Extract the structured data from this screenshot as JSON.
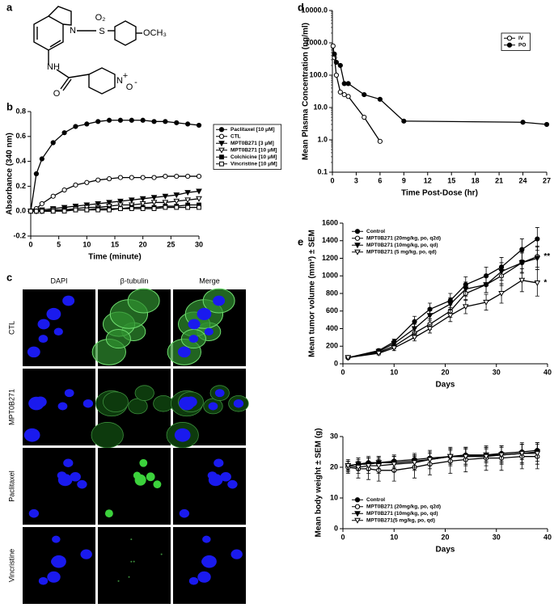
{
  "panel_labels": [
    "a",
    "b",
    "c",
    "d",
    "e"
  ],
  "structure": {
    "labels": [
      "N",
      "S",
      "O₂",
      "OCH₃",
      "NH",
      "O",
      "N",
      "+",
      "O",
      "-"
    ]
  },
  "microscopy": {
    "columns": [
      "DAPI",
      "β-tubulin",
      "Merge"
    ],
    "rows": [
      "CTL",
      "MPT0B271",
      "Paclitaxel",
      "Vincristine"
    ]
  },
  "chart_data": [
    {
      "type": "line",
      "xlabel": "Time (minute)",
      "ylabel": "Absorbance (340 nm)",
      "x": [
        0,
        1,
        2,
        4,
        6,
        8,
        10,
        12,
        14,
        16,
        18,
        20,
        22,
        24,
        26,
        28,
        30
      ],
      "xlim": [
        0,
        30
      ],
      "xticks": [
        0,
        5,
        10,
        15,
        20,
        25,
        30
      ],
      "ylim": [
        -0.2,
        0.8
      ],
      "yticks": [
        -0.2,
        {
          "value": 0,
          "label": "0.0"
        },
        0.2,
        0.4,
        0.6,
        0.8
      ],
      "legend": "right",
      "legend_frame": true,
      "series": [
        {
          "name": "Paclitaxel [10 μM]",
          "color": "#000000",
          "marker": "filled-circle",
          "values": [
            0,
            0.3,
            0.42,
            0.55,
            0.63,
            0.68,
            0.7,
            0.72,
            0.73,
            0.73,
            0.73,
            0.73,
            0.72,
            0.72,
            0.71,
            0.7,
            0.69
          ]
        },
        {
          "name": "CTL",
          "color": "#000000",
          "marker": "open-circle",
          "values": [
            0,
            0.02,
            0.06,
            0.12,
            0.17,
            0.21,
            0.23,
            0.25,
            0.26,
            0.27,
            0.27,
            0.27,
            0.27,
            0.28,
            0.28,
            0.28,
            0.28
          ]
        },
        {
          "name": "MPT0B271 [3 μM]",
          "color": "#000000",
          "marker": "filled-triangle",
          "values": [
            0,
            0,
            0.01,
            0.02,
            0.03,
            0.04,
            0.05,
            0.06,
            0.07,
            0.08,
            0.09,
            0.1,
            0.11,
            0.12,
            0.13,
            0.15,
            0.16
          ]
        },
        {
          "name": "MPT0B271 [10 μM]",
          "color": "#000000",
          "marker": "open-triangle",
          "values": [
            0,
            0,
            0,
            0.01,
            0.01,
            0.02,
            0.03,
            0.03,
            0.04,
            0.05,
            0.05,
            0.06,
            0.07,
            0.07,
            0.08,
            0.09,
            0.1
          ]
        },
        {
          "name": "Colchicine [10 μM]",
          "color": "#000000",
          "marker": "filled-square",
          "values": [
            0,
            0,
            0,
            0,
            0.01,
            0.01,
            0.01,
            0.02,
            0.02,
            0.02,
            0.03,
            0.03,
            0.03,
            0.04,
            0.04,
            0.05,
            0.05
          ]
        },
        {
          "name": "Vincristine [10 μM]",
          "color": "#000000",
          "marker": "open-square",
          "values": [
            0,
            0,
            0,
            0,
            0,
            0.01,
            0.01,
            0.01,
            0.01,
            0.02,
            0.02,
            0.02,
            0.02,
            0.03,
            0.03,
            0.03,
            0.03
          ]
        }
      ]
    },
    {
      "type": "line",
      "xlabel": "Time Post-Dose (hr)",
      "ylabel": "Mean Plasma Concentration (ng/ml)",
      "xlim": [
        0,
        27
      ],
      "xticks": [
        0,
        3,
        6,
        9,
        12,
        15,
        18,
        21,
        24,
        27
      ],
      "yscale": "log",
      "ylim": [
        0.1,
        10000
      ],
      "yticks": [
        0.1,
        {
          "value": 1,
          "label": "1.0"
        },
        {
          "value": 10,
          "label": "10.0"
        },
        {
          "value": 100,
          "label": "100.0"
        },
        {
          "value": 1000,
          "label": "1000.0"
        },
        {
          "value": 10000,
          "label": "10000.0"
        }
      ],
      "legend": "upper right",
      "legend_frame": true,
      "series": [
        {
          "name": "IV",
          "color": "#000000",
          "marker": "open-circle",
          "x": [
            0.083,
            0.25,
            0.5,
            1,
            1.5,
            2,
            4,
            6
          ],
          "values": [
            800,
            350,
            100,
            30,
            25,
            22,
            5,
            0.9
          ]
        },
        {
          "name": "PO",
          "color": "#000000",
          "marker": "filled-circle",
          "x": [
            0.25,
            0.5,
            1,
            1.5,
            2,
            4,
            6,
            9,
            24,
            27
          ],
          "values": [
            450,
            250,
            200,
            55,
            55,
            25,
            18,
            3.8,
            3.5,
            3
          ]
        }
      ]
    },
    {
      "type": "line",
      "xlabel": "Days",
      "ylabel": "Mean tumor volume (mm³) ± SEM",
      "x": [
        1,
        7,
        10,
        14,
        17,
        21,
        24,
        28,
        31,
        35,
        38
      ],
      "xlim": [
        0,
        40
      ],
      "xticks": [
        0,
        10,
        20,
        30,
        40
      ],
      "ylim": [
        0,
        1600
      ],
      "yticks": [
        0,
        200,
        400,
        600,
        800,
        1000,
        1200,
        1400,
        1600
      ],
      "legend": "upper left",
      "legend_frame": false,
      "annotations": [
        "**",
        "*"
      ],
      "series": [
        {
          "name": "Control",
          "color": "#000000",
          "marker": "filled-circle",
          "values": [
            70,
            150,
            250,
            480,
            620,
            720,
            900,
            1000,
            1100,
            1300,
            1420
          ],
          "errors": [
            10,
            20,
            30,
            60,
            70,
            80,
            90,
            100,
            110,
            120,
            130
          ]
        },
        {
          "name": "MPT0B271 (20mg/kg, po, q2d)",
          "color": "#000000",
          "marker": "open-circle",
          "values": [
            70,
            130,
            200,
            350,
            450,
            600,
            800,
            900,
            1000,
            1150,
            1220
          ],
          "errors": [
            10,
            20,
            30,
            50,
            60,
            70,
            80,
            90,
            110,
            120,
            120
          ]
        },
        {
          "name": "MPT0B271 (10mg/kg, po, qd)",
          "color": "#000000",
          "marker": "filled-triangle",
          "values": [
            70,
            140,
            230,
            400,
            550,
            680,
            850,
            900,
            1050,
            1150,
            1200
          ],
          "errors": [
            10,
            20,
            30,
            50,
            60,
            70,
            80,
            90,
            100,
            110,
            130
          ]
        },
        {
          "name": "MPT0B271 (5 mg/kg, po, qd)",
          "color": "#000000",
          "marker": "open-triangle",
          "values": [
            70,
            120,
            180,
            300,
            400,
            550,
            650,
            700,
            800,
            950,
            920
          ],
          "errors": [
            10,
            20,
            30,
            40,
            50,
            70,
            80,
            90,
            110,
            130,
            150
          ]
        }
      ]
    },
    {
      "type": "line",
      "xlabel": "Days",
      "ylabel": "Mean body weight ± SEM (g)",
      "x": [
        1,
        3,
        5,
        7,
        10,
        14,
        17,
        21,
        24,
        28,
        31,
        35,
        38
      ],
      "xlim": [
        0,
        40
      ],
      "xticks": [
        0,
        10,
        20,
        30,
        40
      ],
      "ylim": [
        0,
        30
      ],
      "yticks": [
        0,
        10,
        20,
        30
      ],
      "legend": "lower left",
      "legend_frame": false,
      "series": [
        {
          "name": "Control",
          "color": "#000000",
          "marker": "filled-circle",
          "values": [
            20.5,
            21,
            21.5,
            21.5,
            22,
            22.5,
            23,
            23.5,
            24,
            24,
            24.5,
            25,
            25.5
          ],
          "errors": [
            1.5,
            2,
            2,
            2,
            2,
            2,
            2,
            2,
            2,
            2,
            2.5,
            2.5,
            2.5
          ]
        },
        {
          "name": "MPT0B271 (20mg/kg, po, q2d)",
          "color": "#000000",
          "marker": "open-circle",
          "values": [
            20,
            19.5,
            19.5,
            19,
            19,
            20,
            21,
            22,
            22.5,
            23,
            23,
            23.5,
            23.5
          ],
          "errors": [
            2,
            3,
            3.5,
            3.5,
            3.5,
            3.5,
            3.5,
            4,
            4,
            4,
            4,
            4,
            4
          ]
        },
        {
          "name": "MPT0B271 (10mg/kg, po, qd)",
          "color": "#000000",
          "marker": "filled-triangle",
          "values": [
            20.5,
            21,
            21,
            21.5,
            21.5,
            22,
            22.5,
            23.5,
            23.5,
            24,
            24,
            24.5,
            25
          ],
          "errors": [
            1.5,
            2,
            2,
            2,
            2,
            2,
            2,
            2.5,
            2.5,
            2.5,
            2.5,
            3,
            3
          ]
        },
        {
          "name": "MPT0B271(5 mg/kg, po, qd)",
          "color": "#000000",
          "marker": "open-triangle",
          "values": [
            20.5,
            20,
            20.5,
            20.5,
            21,
            21.5,
            22.5,
            23.5,
            23.5,
            23.5,
            24,
            24.5,
            24.5
          ],
          "errors": [
            2,
            2,
            2.5,
            2.5,
            2.5,
            2.5,
            3,
            3,
            3,
            3,
            3,
            3.5,
            3.5
          ]
        }
      ]
    }
  ]
}
